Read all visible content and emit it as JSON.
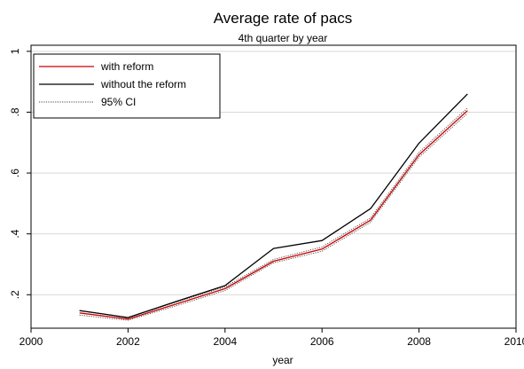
{
  "chart_data": {
    "type": "line",
    "title": "Average rate of pacs",
    "subtitle": "4th quarter by year",
    "xlabel": "year",
    "ylabel": "",
    "xlim": [
      2000,
      2010
    ],
    "ylim": [
      0.09,
      1.02
    ],
    "x_ticks": [
      2000,
      2002,
      2004,
      2006,
      2008,
      2010
    ],
    "x_tick_labels": [
      "2000",
      "2002",
      "2004",
      "2006",
      "2008",
      "2010"
    ],
    "y_ticks": [
      0.2,
      0.4,
      0.6,
      0.8,
      1.0
    ],
    "y_tick_labels": [
      ".2",
      ".4",
      ".6",
      ".8",
      "1"
    ],
    "grid": true,
    "legend_position": "top-left",
    "x": [
      2001,
      2002,
      2003,
      2004,
      2005,
      2006,
      2007,
      2008,
      2009
    ],
    "series": [
      {
        "name": "with reform",
        "color": "#cc0000",
        "style": "solid",
        "values": [
          0.14,
          0.12,
          0.17,
          0.22,
          0.31,
          0.35,
          0.445,
          0.66,
          0.805
        ]
      },
      {
        "name": "without the reform",
        "color": "#000000",
        "style": "solid",
        "values": [
          0.148,
          0.125,
          0.178,
          0.23,
          0.352,
          0.378,
          0.483,
          0.698,
          0.86
        ]
      },
      {
        "name": "95% CI",
        "color": "#444444",
        "style": "dotted",
        "values": [
          0.133,
          0.116,
          0.164,
          0.214,
          0.305,
          0.343,
          0.438,
          0.652,
          0.796
        ]
      },
      {
        "name": "",
        "color": "#444444",
        "style": "dotted",
        "values": [
          0.147,
          0.124,
          0.176,
          0.226,
          0.316,
          0.357,
          0.452,
          0.668,
          0.814
        ]
      }
    ]
  }
}
